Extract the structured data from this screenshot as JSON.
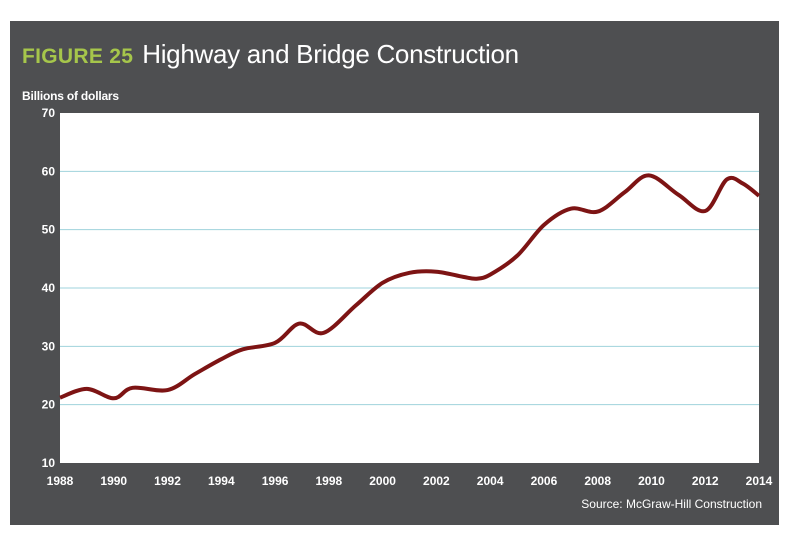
{
  "figure": {
    "label": "FIGURE 25",
    "title": "Highway and Bridge Construction",
    "source": "Source: McGraw-Hill Construction"
  },
  "colors": {
    "background_panel": "#4e4f51",
    "figure_label": "#a6c64b",
    "plot_area": "#ffffff",
    "gridline": "#9fd3dc",
    "line": "#7d1414",
    "text": "#ffffff"
  },
  "chart_data": {
    "type": "line",
    "title": "Highway and Bridge Construction",
    "xlabel": "",
    "ylabel": "Billions of dollars",
    "xlim": [
      1988,
      2014
    ],
    "ylim": [
      10,
      70
    ],
    "x_ticks": [
      1988,
      1990,
      1992,
      1994,
      1996,
      1998,
      2000,
      2002,
      2004,
      2006,
      2008,
      2010,
      2012,
      2014
    ],
    "y_ticks": [
      10,
      20,
      30,
      40,
      50,
      60,
      70
    ],
    "grid": "horizontal",
    "legend": "none",
    "series": [
      {
        "name": "Highway and Bridge Construction",
        "x": [
          1988,
          1989,
          1990,
          1990.7,
          1992,
          1993,
          1994,
          1994.8,
          1996,
          1996.9,
          1997.8,
          1999,
          2000,
          2001,
          2002,
          2003,
          2003.5,
          2004,
          2005,
          2006,
          2007,
          2008,
          2009,
          2009.9,
          2011,
          2012,
          2012.8,
          2013.4,
          2014
        ],
        "values": [
          21.2,
          22.7,
          21.1,
          22.9,
          22.5,
          25.2,
          27.8,
          29.5,
          30.6,
          33.9,
          32.3,
          37.0,
          40.9,
          42.6,
          42.8,
          41.9,
          41.6,
          42.3,
          45.5,
          50.8,
          53.6,
          53.1,
          56.4,
          59.3,
          56.0,
          53.2,
          58.6,
          57.9,
          55.8
        ]
      }
    ]
  }
}
